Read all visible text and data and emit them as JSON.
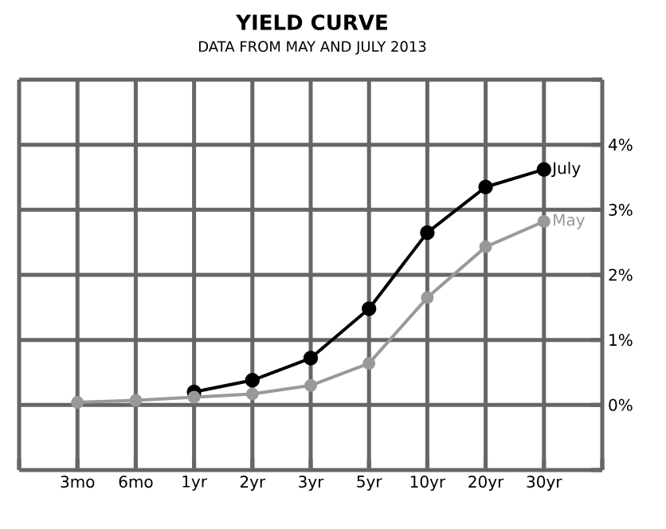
{
  "chart_data": {
    "type": "line",
    "title": "YIELD CURVE",
    "subtitle": "DATA FROM MAY AND JULY 2013",
    "categories": [
      "3mo",
      "6mo",
      "1yr",
      "2yr",
      "3yr",
      "5yr",
      "10yr",
      "20yr",
      "30yr"
    ],
    "series": [
      {
        "name": "July",
        "color": "#000000",
        "values": [
          null,
          null,
          0.2,
          0.38,
          0.72,
          1.48,
          2.65,
          3.35,
          3.62
        ]
      },
      {
        "name": "May",
        "color": "#999999",
        "values": [
          0.04,
          0.07,
          0.12,
          0.17,
          0.3,
          0.64,
          1.65,
          2.43,
          2.82
        ]
      }
    ],
    "ylim": [
      -1,
      5
    ],
    "yticks": [
      {
        "value": -1,
        "label": null
      },
      {
        "value": 0,
        "label": "0%"
      },
      {
        "value": 1,
        "label": "1%"
      },
      {
        "value": 2,
        "label": "2%"
      },
      {
        "value": 3,
        "label": "3%"
      },
      {
        "value": 4,
        "label": "4%"
      },
      {
        "value": 5,
        "label": null
      }
    ],
    "grid": true,
    "marker": "circle",
    "line_style": "solid"
  }
}
